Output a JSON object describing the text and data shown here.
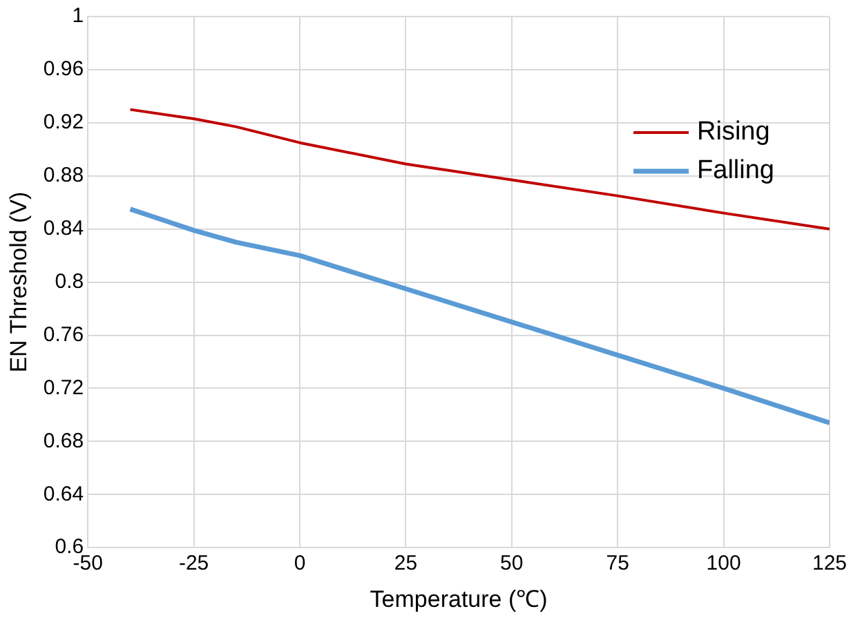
{
  "chart_data": {
    "type": "line",
    "xlabel": "Temperature (℃)",
    "ylabel": "EN Threshold (V)",
    "x": [
      -40,
      -25,
      -15,
      0,
      25,
      50,
      75,
      100,
      125
    ],
    "series": [
      {
        "name": "Rising",
        "color": "#c00000",
        "values": [
          0.93,
          0.923,
          0.917,
          0.905,
          0.889,
          0.877,
          0.865,
          0.852,
          0.84
        ]
      },
      {
        "name": "Falling",
        "color": "#5b9bd5",
        "values": [
          0.855,
          0.839,
          0.83,
          0.82,
          0.795,
          0.77,
          0.745,
          0.72,
          0.694
        ]
      }
    ],
    "xlim": [
      -50,
      125
    ],
    "xticks": [
      -50,
      -25,
      0,
      25,
      50,
      75,
      100,
      125
    ],
    "ylim": [
      0.6,
      1
    ],
    "yticks": [
      0.6,
      0.64,
      0.68,
      0.72,
      0.76,
      0.8,
      0.84,
      0.88,
      0.92,
      0.96,
      1
    ],
    "grid": true,
    "legend": "top right",
    "marker": "none",
    "line_style": "solid"
  }
}
